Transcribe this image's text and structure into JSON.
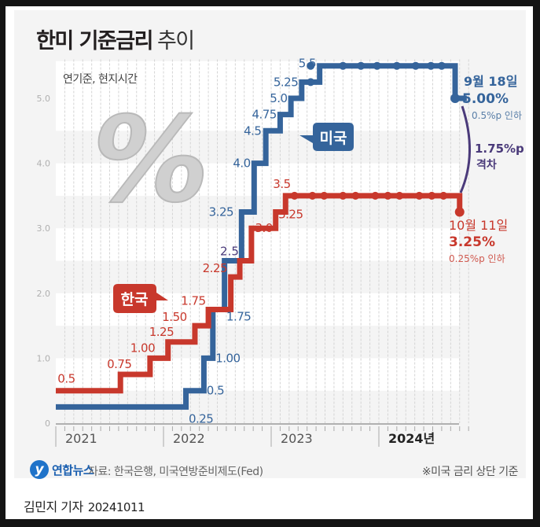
{
  "title": {
    "bold": "한미 기준금리",
    "light": "추이"
  },
  "subtitle": "연기준, 현지시간",
  "colors": {
    "us": "#35649b",
    "kr": "#c8382c",
    "gap": "#4a3a7a",
    "grid": "#d8d8d8",
    "axis": "#999999"
  },
  "chart_data": {
    "type": "line",
    "title": "한미 기준금리 추이",
    "subtitle": "연기준, 현지시간",
    "xlabel": "",
    "ylabel": "%",
    "ylim": [
      0,
      5.5
    ],
    "yticks": [
      "0",
      "1.0",
      "2.0",
      "3.0",
      "4.0",
      "5.0"
    ],
    "x_categories": [
      "2021",
      "2022",
      "2023",
      "2024년"
    ],
    "xlim_months": [
      0,
      46
    ],
    "grid": true,
    "series": [
      {
        "name": "미국",
        "color": "#35649b",
        "step": true,
        "points": [
          {
            "m": 0,
            "v": 0.25
          },
          {
            "m": 14.5,
            "v": 0.5,
            "label": "0.25"
          },
          {
            "m": 16.5,
            "v": 1.0,
            "label": "0.5"
          },
          {
            "m": 17.5,
            "v": 1.75,
            "label": "1.00"
          },
          {
            "m": 18.8,
            "v": 2.5,
            "label": "1.75"
          },
          {
            "m": 20.7,
            "v": 3.25,
            "label": "2.5"
          },
          {
            "m": 22.1,
            "v": 4.0,
            "label": "3.25"
          },
          {
            "m": 23.4,
            "v": 4.5,
            "label": "4.0"
          },
          {
            "m": 25.0,
            "v": 4.75,
            "label": "4.5"
          },
          {
            "m": 26.2,
            "v": 5.0,
            "label": "4.75"
          },
          {
            "m": 27.4,
            "v": 5.25,
            "label": "5.0"
          },
          {
            "m": 29.4,
            "v": 5.5,
            "label": "5.25"
          },
          {
            "m": 44.5,
            "v": 5.0,
            "label": "5.5"
          }
        ],
        "end_m": 45.8,
        "freeze_dots_m": [
          28.4,
          32.0,
          34.0,
          35.8,
          38.0,
          40.1,
          41.8,
          43.0
        ],
        "end_dot_m": 44.5
      },
      {
        "name": "한국",
        "color": "#c8382c",
        "step": true,
        "points": [
          {
            "m": 0,
            "v": 0.5,
            "label": "0.5"
          },
          {
            "m": 7.2,
            "v": 0.75,
            "label": "0.75"
          },
          {
            "m": 10.5,
            "v": 1.0,
            "label": "1.00"
          },
          {
            "m": 12.5,
            "v": 1.25,
            "label": "1.25"
          },
          {
            "m": 15.5,
            "v": 1.5,
            "label": "1.50"
          },
          {
            "m": 17.0,
            "v": 1.75,
            "label": "1.75"
          },
          {
            "m": 19.5,
            "v": 2.25,
            "label": "2.25"
          },
          {
            "m": 20.5,
            "v": 2.5,
            "label": "2.5"
          },
          {
            "m": 21.8,
            "v": 3.0,
            "label": "3.0"
          },
          {
            "m": 24.5,
            "v": 3.25,
            "label": "3.25"
          },
          {
            "m": 25.6,
            "v": 3.5,
            "label": "3.5"
          },
          {
            "m": 45.0,
            "v": 3.25
          }
        ],
        "end_m": 45.0,
        "freeze_dots_m": [
          26.6,
          28.6,
          29.9,
          32.0,
          33.4,
          35.6,
          37.0,
          38.3,
          40.5,
          41.9,
          43.2
        ],
        "end_dot_m": 45.0
      }
    ],
    "annotations": {
      "us_cut": {
        "date": "9월 18일",
        "rate": "5.00%",
        "change": "0.5%p 인하"
      },
      "kr_cut": {
        "date": "10월 11일",
        "rate": "3.25%",
        "change": "0.25%p 인하"
      },
      "gap": {
        "value": "1.75%p",
        "label": "격차"
      },
      "us_tag": "미국",
      "kr_tag": "한국"
    }
  },
  "footer": {
    "logo": "연합뉴스",
    "source": "자료: 한국은행, 미국연방준비제도(Fed)",
    "note": "※미국 금리 상단 기준",
    "byline": "김민지 기자",
    "date": "20241011"
  }
}
